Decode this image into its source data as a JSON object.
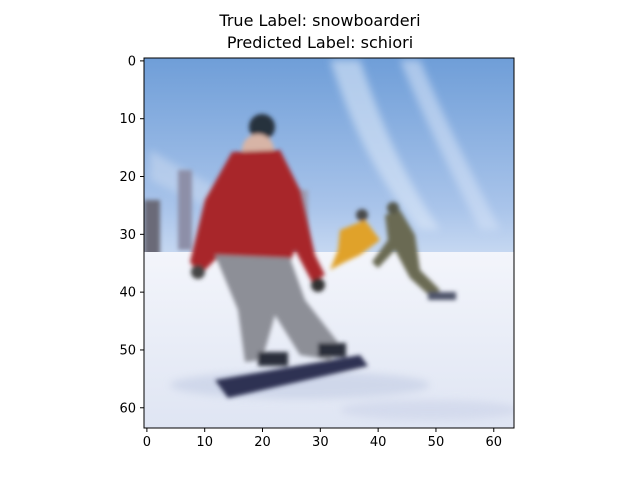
{
  "figure": {
    "title_true": "True Label: snowboarderi",
    "title_predicted": "Predicted Label: schiori"
  },
  "axes": {
    "x_ticks": [
      "0",
      "10",
      "20",
      "30",
      "40",
      "50",
      "60"
    ],
    "y_ticks": [
      "0",
      "10",
      "20",
      "30",
      "40",
      "50",
      "60"
    ],
    "x_tick_values": [
      0,
      10,
      20,
      30,
      40,
      50,
      60
    ],
    "y_tick_values": [
      0,
      10,
      20,
      30,
      40,
      50,
      60
    ],
    "xlim": [
      -0.5,
      63.5
    ],
    "ylim": [
      63.5,
      -0.5
    ],
    "grid": false
  },
  "colors": {
    "sky_top": "#6f9ed8",
    "sky_bottom": "#c9daf2",
    "snow": "#eef1f8",
    "snow_shadow": "#c7d0e6",
    "jacket_red": "#a8262b",
    "pants_gray": "#8d8f97",
    "helmet_dark": "#27303d",
    "board_dark": "#2e3352",
    "skier_yellow": "#e0a22a",
    "skier_olive": "#6a6a52"
  }
}
